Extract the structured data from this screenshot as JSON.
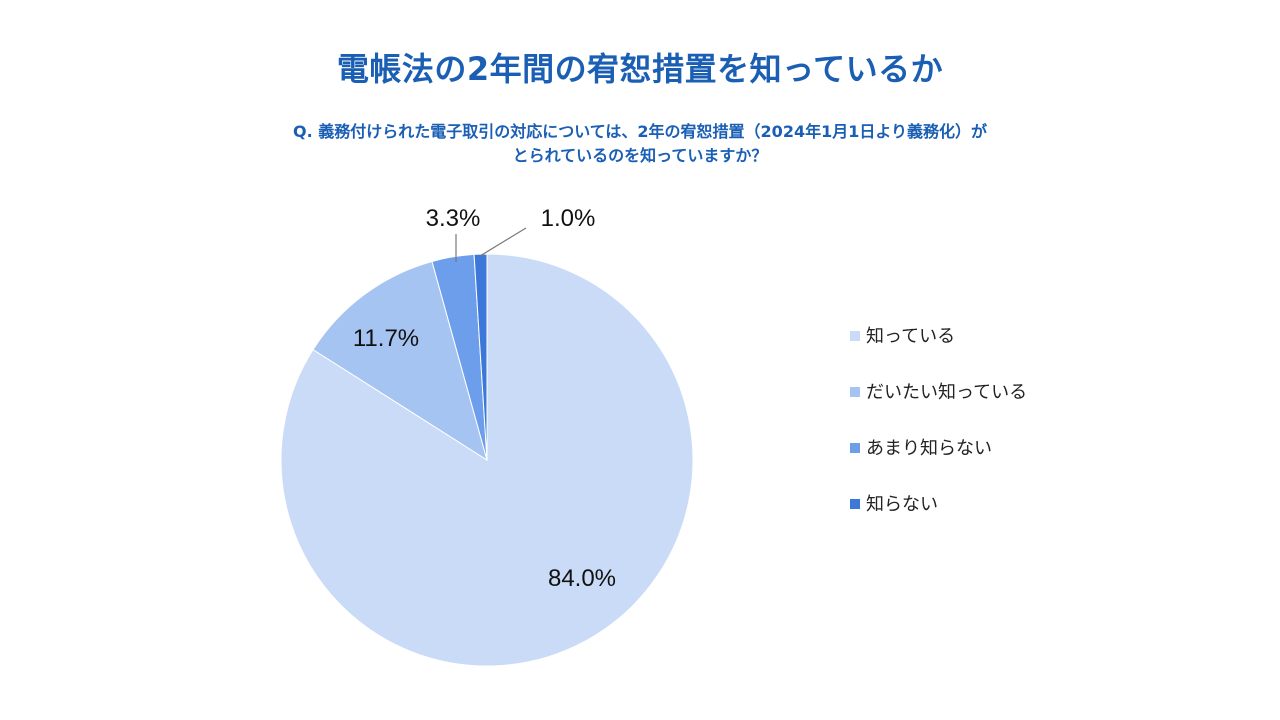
{
  "title": "電帳法の2年間の宥恕措置を知っているか",
  "question_lines": [
    "Q. 義務付けられた電子取引の対応については、2年の宥恕措置（2024年1月1日より義務化）が",
    "とられているのを知っていますか？"
  ],
  "chart_data": {
    "type": "pie",
    "legend_position": "right",
    "start_angle_deg": 0,
    "direction": "clockwise",
    "slices": [
      {
        "label": "知っている",
        "value": 84.0,
        "value_label": "84.0%",
        "color": "#c9dbf7"
      },
      {
        "label": "だいたい知っている",
        "value": 11.7,
        "value_label": "11.7%",
        "color": "#a6c4f2"
      },
      {
        "label": "あまり知らない",
        "value": 3.3,
        "value_label": "3.3%",
        "color": "#6d9eeb"
      },
      {
        "label": "知らない",
        "value": 1.0,
        "value_label": "1.0%",
        "color": "#3c78d8"
      }
    ]
  }
}
